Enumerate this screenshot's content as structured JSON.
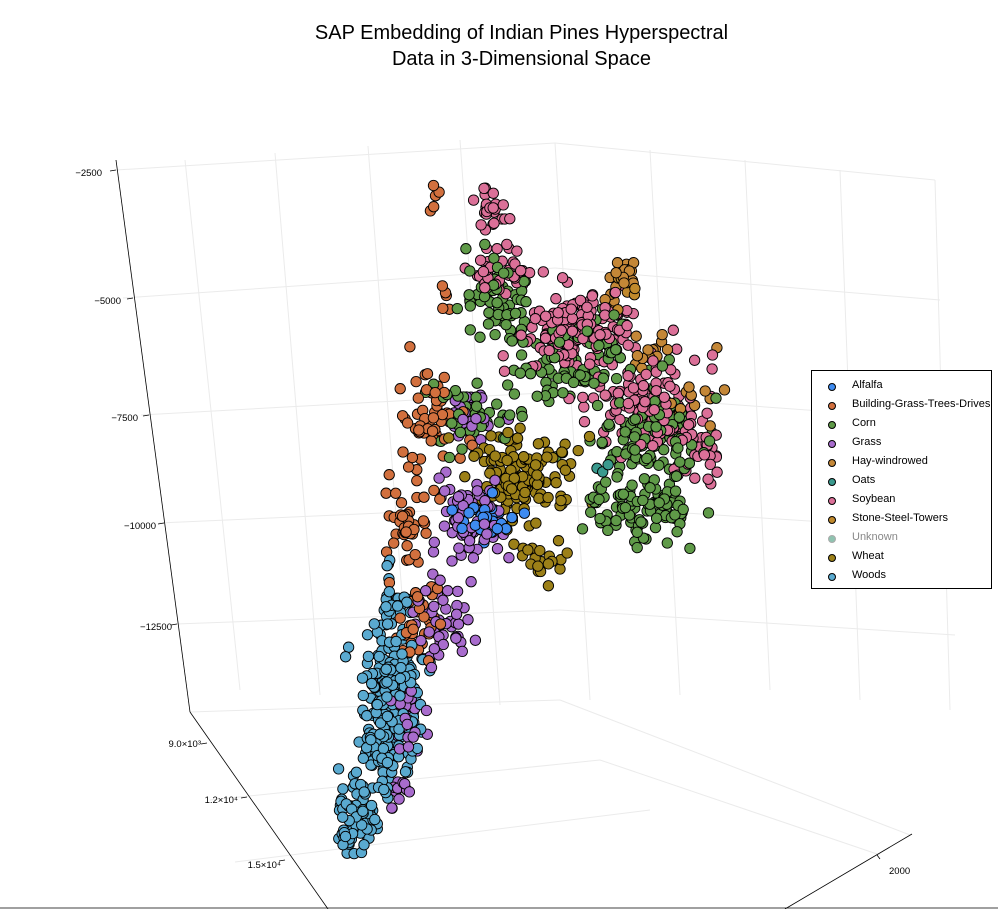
{
  "chart_data": {
    "type": "scatter",
    "title_lines": [
      "SAP Embedding of Indian Pines Hyperspectral",
      "Data in 3-Dimensional Space"
    ],
    "z_ticks": [
      "−2500",
      "−5000",
      "−7500",
      "−10000",
      "−12500"
    ],
    "y_ticks": [
      "9.0×10³",
      "1.2×10⁴",
      "1.5×10⁴"
    ],
    "x_ticks": [
      "2000"
    ],
    "grid": true,
    "legend_position": "right",
    "series": [
      {
        "name": "Alfalfa",
        "color": "#3e8bf0",
        "clusters": [
          [
            487,
            520,
            22,
            18,
            40
          ]
        ]
      },
      {
        "name": "Building-Grass-Trees-Drives",
        "color": "#d2703e",
        "clusters": [
          [
            435,
            192,
            8,
            20,
            5
          ],
          [
            445,
            300,
            14,
            18,
            5
          ],
          [
            430,
            430,
            28,
            50,
            60
          ],
          [
            410,
            520,
            18,
            40,
            40
          ],
          [
            415,
            620,
            22,
            40,
            35
          ]
        ]
      },
      {
        "name": "Corn",
        "color": "#5f9a48",
        "clusters": [
          [
            500,
            300,
            30,
            30,
            60
          ],
          [
            560,
            360,
            55,
            40,
            90
          ],
          [
            650,
            440,
            45,
            40,
            120
          ],
          [
            640,
            510,
            45,
            25,
            100
          ],
          [
            470,
            420,
            30,
            30,
            40
          ]
        ]
      },
      {
        "name": "Grass",
        "color": "#a86ccd",
        "clusters": [
          [
            470,
            420,
            20,
            25,
            25
          ],
          [
            470,
            520,
            35,
            35,
            80
          ],
          [
            440,
            620,
            20,
            40,
            45
          ],
          [
            410,
            720,
            12,
            40,
            25
          ],
          [
            400,
            790,
            10,
            12,
            10
          ]
        ]
      },
      {
        "name": "Hay-windrowed",
        "color": "#c48737",
        "clusters": [
          [
            620,
            275,
            18,
            25,
            20
          ],
          [
            650,
            350,
            20,
            15,
            12
          ],
          [
            690,
            395,
            30,
            40,
            15
          ]
        ]
      },
      {
        "name": "Oats",
        "color": "#3a9a8e",
        "clusters": [
          [
            605,
            470,
            8,
            8,
            3
          ]
        ]
      },
      {
        "name": "Soybean",
        "color": "#db7098",
        "clusters": [
          [
            490,
            210,
            15,
            20,
            25
          ],
          [
            500,
            270,
            25,
            25,
            40
          ],
          [
            580,
            330,
            45,
            30,
            150
          ],
          [
            650,
            400,
            50,
            40,
            120
          ],
          [
            700,
            450,
            20,
            25,
            30
          ]
        ]
      },
      {
        "name": "Stone-Steel-Towers",
        "color": "#c0892c",
        "clusters": [
          [
            625,
            290,
            12,
            20,
            10
          ]
        ]
      },
      {
        "name": "Unknown",
        "color": "#8fc3b0",
        "clusters": []
      },
      {
        "name": "Wheat",
        "color": "#9c8018",
        "clusters": [
          [
            520,
            480,
            45,
            35,
            140
          ],
          [
            545,
            560,
            25,
            15,
            20
          ]
        ]
      },
      {
        "name": "Woods",
        "color": "#5aaad0",
        "clusters": [
          [
            395,
            600,
            15,
            30,
            30
          ],
          [
            390,
            680,
            25,
            40,
            120
          ],
          [
            385,
            740,
            25,
            40,
            100
          ],
          [
            360,
            810,
            20,
            30,
            70
          ],
          [
            352,
            845,
            10,
            10,
            8
          ]
        ]
      }
    ]
  }
}
